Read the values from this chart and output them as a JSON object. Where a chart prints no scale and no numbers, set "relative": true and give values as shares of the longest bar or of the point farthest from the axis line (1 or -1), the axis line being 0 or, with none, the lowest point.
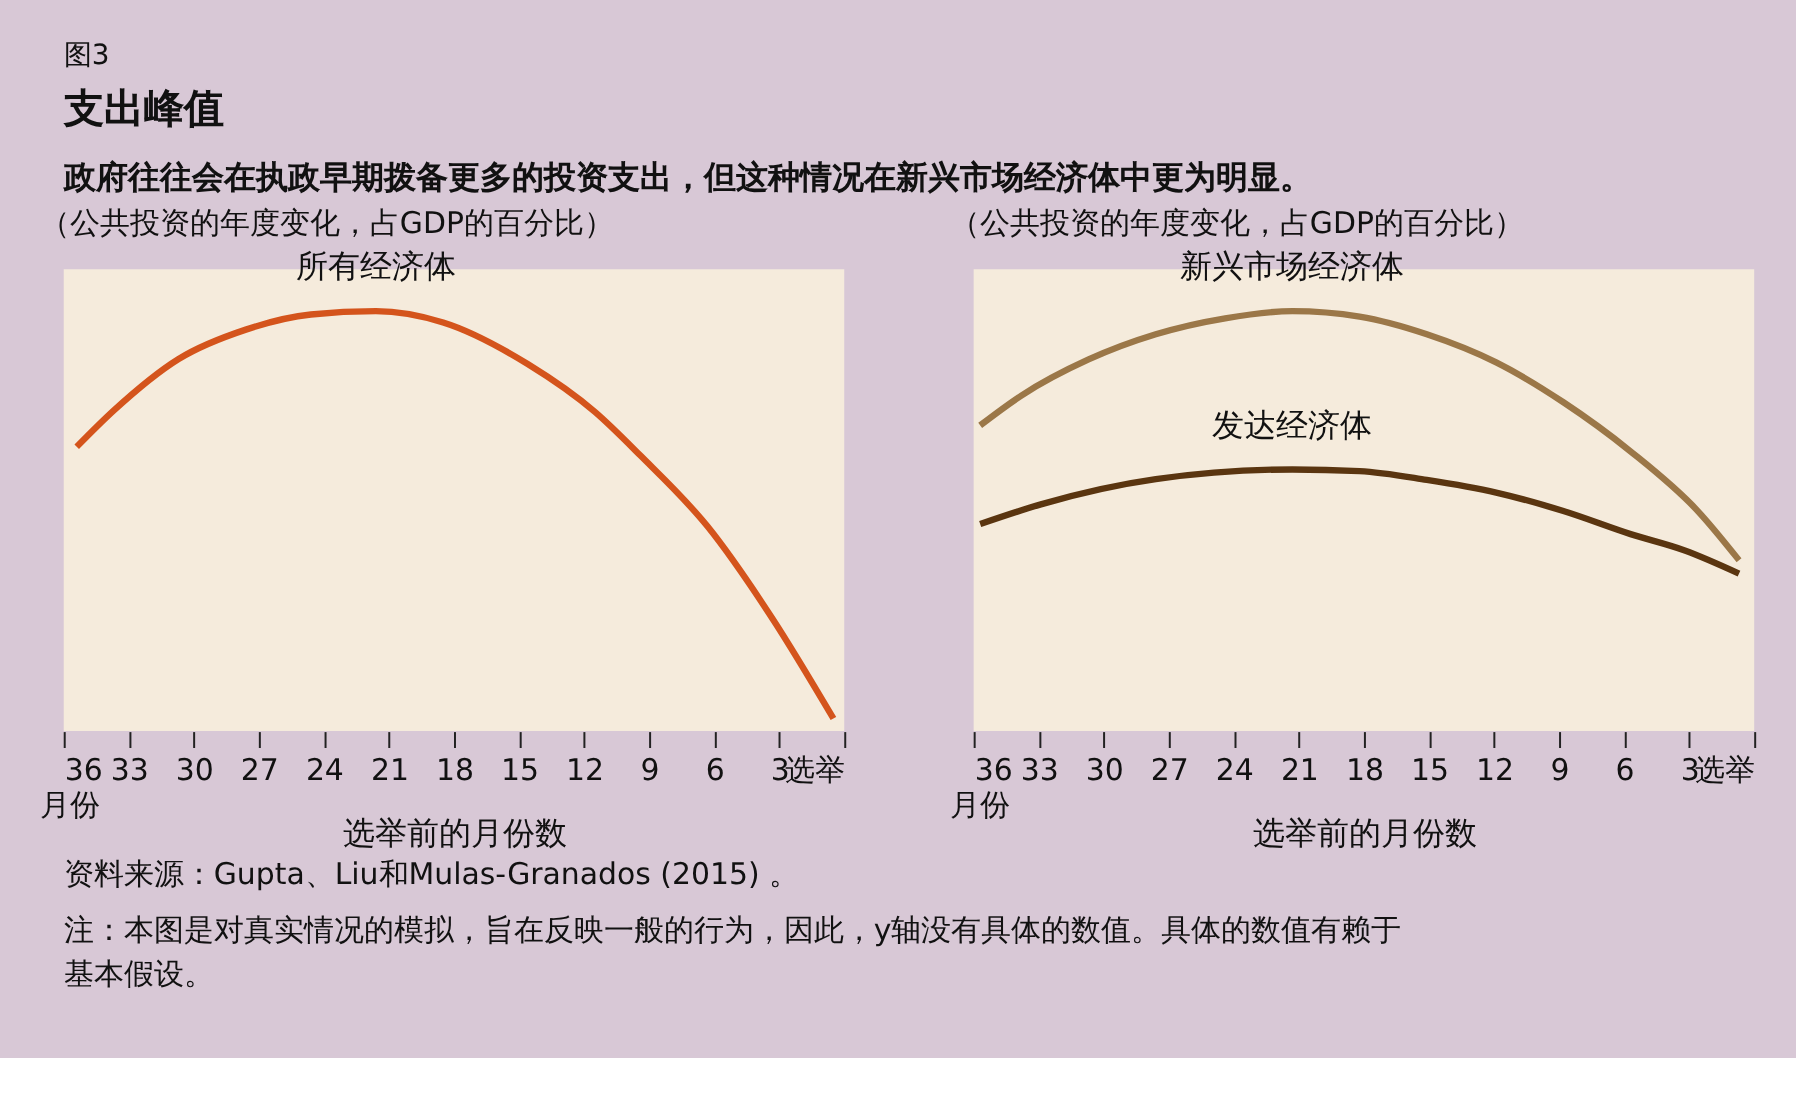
{
  "chart_data": [
    {
      "type": "line",
      "relative": true,
      "title": "支出峰值",
      "subtitle": "政府往往会在执政早期拨备更多的投资支出，但这种情况在新兴市场经济体中更为明显。",
      "ylabel": "（公共投资的年度变化，占GDP的百分比）",
      "xlabel": "选举前的月份数",
      "annotations": [
        "月份",
        "图3",
        "资料来源：Gupta、Liu和Mulas-Granados (2015) 。",
        "注：本图是对真实情况的模拟，旨在反映一般的行为，因此，y轴没有具体的数值。具体的数值有赖于基本假设。"
      ],
      "xlim": [
        36,
        0
      ],
      "xticks": [
        36,
        33,
        30,
        27,
        24,
        21,
        18,
        15,
        12,
        9,
        6,
        3,
        {
          "value": 0,
          "label": "选举"
        }
      ],
      "series": [
        {
          "name": "所有经济体",
          "color": "#d4541c",
          "x": [
            35.4,
            33.7,
            30.7,
            27.6,
            24.6,
            21.6,
            18.5,
            14.6,
            11.5,
            9.4,
            6.3,
            3.3,
            0.5
          ],
          "values": [
            0.677,
            0.763,
            0.886,
            0.956,
            0.992,
            1,
            0.973,
            0.874,
            0.76,
            0.656,
            0.487,
            0.267,
            0.03
          ]
        }
      ]
    },
    {
      "type": "line",
      "relative": true,
      "ylabel": "（公共投资的年度变化，占GDP的百分比）",
      "xlabel": "选举前的月份数",
      "annotations": [
        "月份"
      ],
      "xlim": [
        36,
        0
      ],
      "xticks": [
        36,
        33,
        30,
        27,
        24,
        21,
        18,
        15,
        12,
        9,
        6,
        3,
        {
          "value": 0,
          "label": "选举"
        }
      ],
      "series": [
        {
          "name": "新兴市场经济体",
          "color": "#9b7748",
          "x": [
            35.7,
            33.8,
            30.7,
            27.6,
            24.4,
            21.3,
            18.2,
            15.1,
            11.9,
            8.8,
            5.7,
            2.6,
            0.7
          ],
          "values": [
            0.728,
            0.799,
            0.885,
            0.945,
            0.983,
            1,
            0.987,
            0.945,
            0.878,
            0.783,
            0.666,
            0.524,
            0.407
          ]
        },
        {
          "name": "发达经济体",
          "color": "#5a3510",
          "x": [
            35.7,
            32.9,
            27.6,
            21.3,
            18.2,
            15.1,
            11.9,
            8.8,
            5.7,
            3.2,
            0.7
          ],
          "values": [
            0.493,
            0.54,
            0.6,
            0.623,
            0.619,
            0.598,
            0.568,
            0.524,
            0.469,
            0.43,
            0.375
          ]
        }
      ]
    }
  ]
}
